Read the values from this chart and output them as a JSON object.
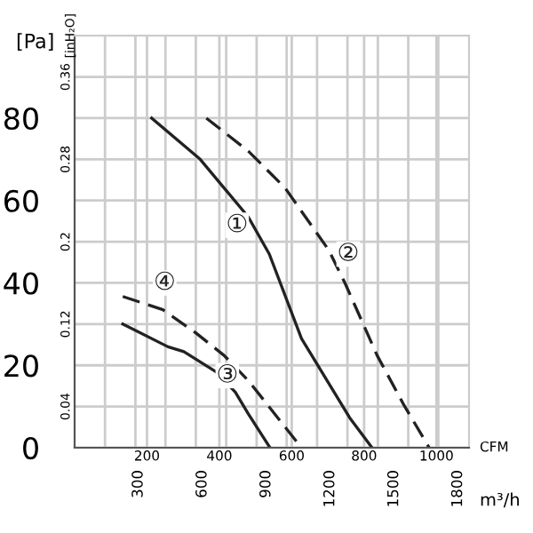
{
  "chart_data": {
    "type": "line",
    "xlabel": "CFM",
    "x2label": "m³/h",
    "ylabel": "[Pa]",
    "y2label": "[inH₂O]",
    "xlim": [
      0,
      1090
    ],
    "xticks": [
      {
        "value": 84,
        "label": null
      },
      {
        "value": 168,
        "label": null
      },
      200,
      {
        "value": 251,
        "label": null
      },
      {
        "value": 335,
        "label": null
      },
      400,
      {
        "value": 419,
        "label": null
      },
      {
        "value": 503,
        "label": null
      },
      {
        "value": 586,
        "label": null
      },
      600,
      {
        "value": 670,
        "label": null
      },
      {
        "value": 754,
        "label": null
      },
      800,
      {
        "value": 838,
        "label": null
      },
      {
        "value": 922,
        "label": null
      },
      {
        "value": 1005,
        "label": null
      },
      1000
    ],
    "x2lim": [
      0,
      1852
    ],
    "x2ticks": [
      300,
      600,
      900,
      1200,
      1500,
      1800
    ],
    "ylim": [
      0,
      100
    ],
    "yticks": [
      0,
      {
        "value": 10,
        "label": null
      },
      20,
      {
        "value": 30,
        "label": null
      },
      40,
      {
        "value": 50,
        "label": null
      },
      60,
      {
        "value": 70,
        "label": null
      },
      80,
      {
        "value": 90,
        "label": null
      }
    ],
    "y2lim": [
      0,
      0.4
    ],
    "y2ticks": [
      0.04,
      0.12,
      0.2,
      0.28,
      0.36
    ],
    "grid": true,
    "legend": false,
    "marker": "none",
    "series": [
      {
        "color": "#222222",
        "line_style": "solid",
        "x": [
          213,
          347,
          480,
          538,
          627,
          760,
          822
        ],
        "values": [
          80,
          70,
          56,
          47,
          26.5,
          7.3,
          0
        ]
      },
      {
        "color": "#222222",
        "line_style": "dashed",
        "x": [
          364,
          480,
          582,
          702,
          747,
          836,
          911,
          980
        ],
        "values": [
          80,
          72,
          63,
          48,
          40,
          22.4,
          10.2,
          0
        ]
      },
      {
        "color": "#222222",
        "line_style": "solid",
        "x": [
          133,
          258,
          302,
          391,
          444,
          480,
          540
        ],
        "values": [
          30,
          24.5,
          23.3,
          18.4,
          13.5,
          8.2,
          0
        ]
      },
      {
        "color": "#222222",
        "line_style": "dashed",
        "x": [
          133,
          244,
          333,
          413,
          480,
          627
        ],
        "values": [
          36.7,
          33.5,
          28,
          22.4,
          16.3,
          0
        ]
      }
    ],
    "annotations": [
      {
        "text": "①",
        "x": 449,
        "y": 54
      },
      {
        "text": "②",
        "x": 756,
        "y": 47
      },
      {
        "text": "③",
        "x": 422,
        "y": 17.5
      },
      {
        "text": "④",
        "x": 249,
        "y": 40
      }
    ]
  }
}
